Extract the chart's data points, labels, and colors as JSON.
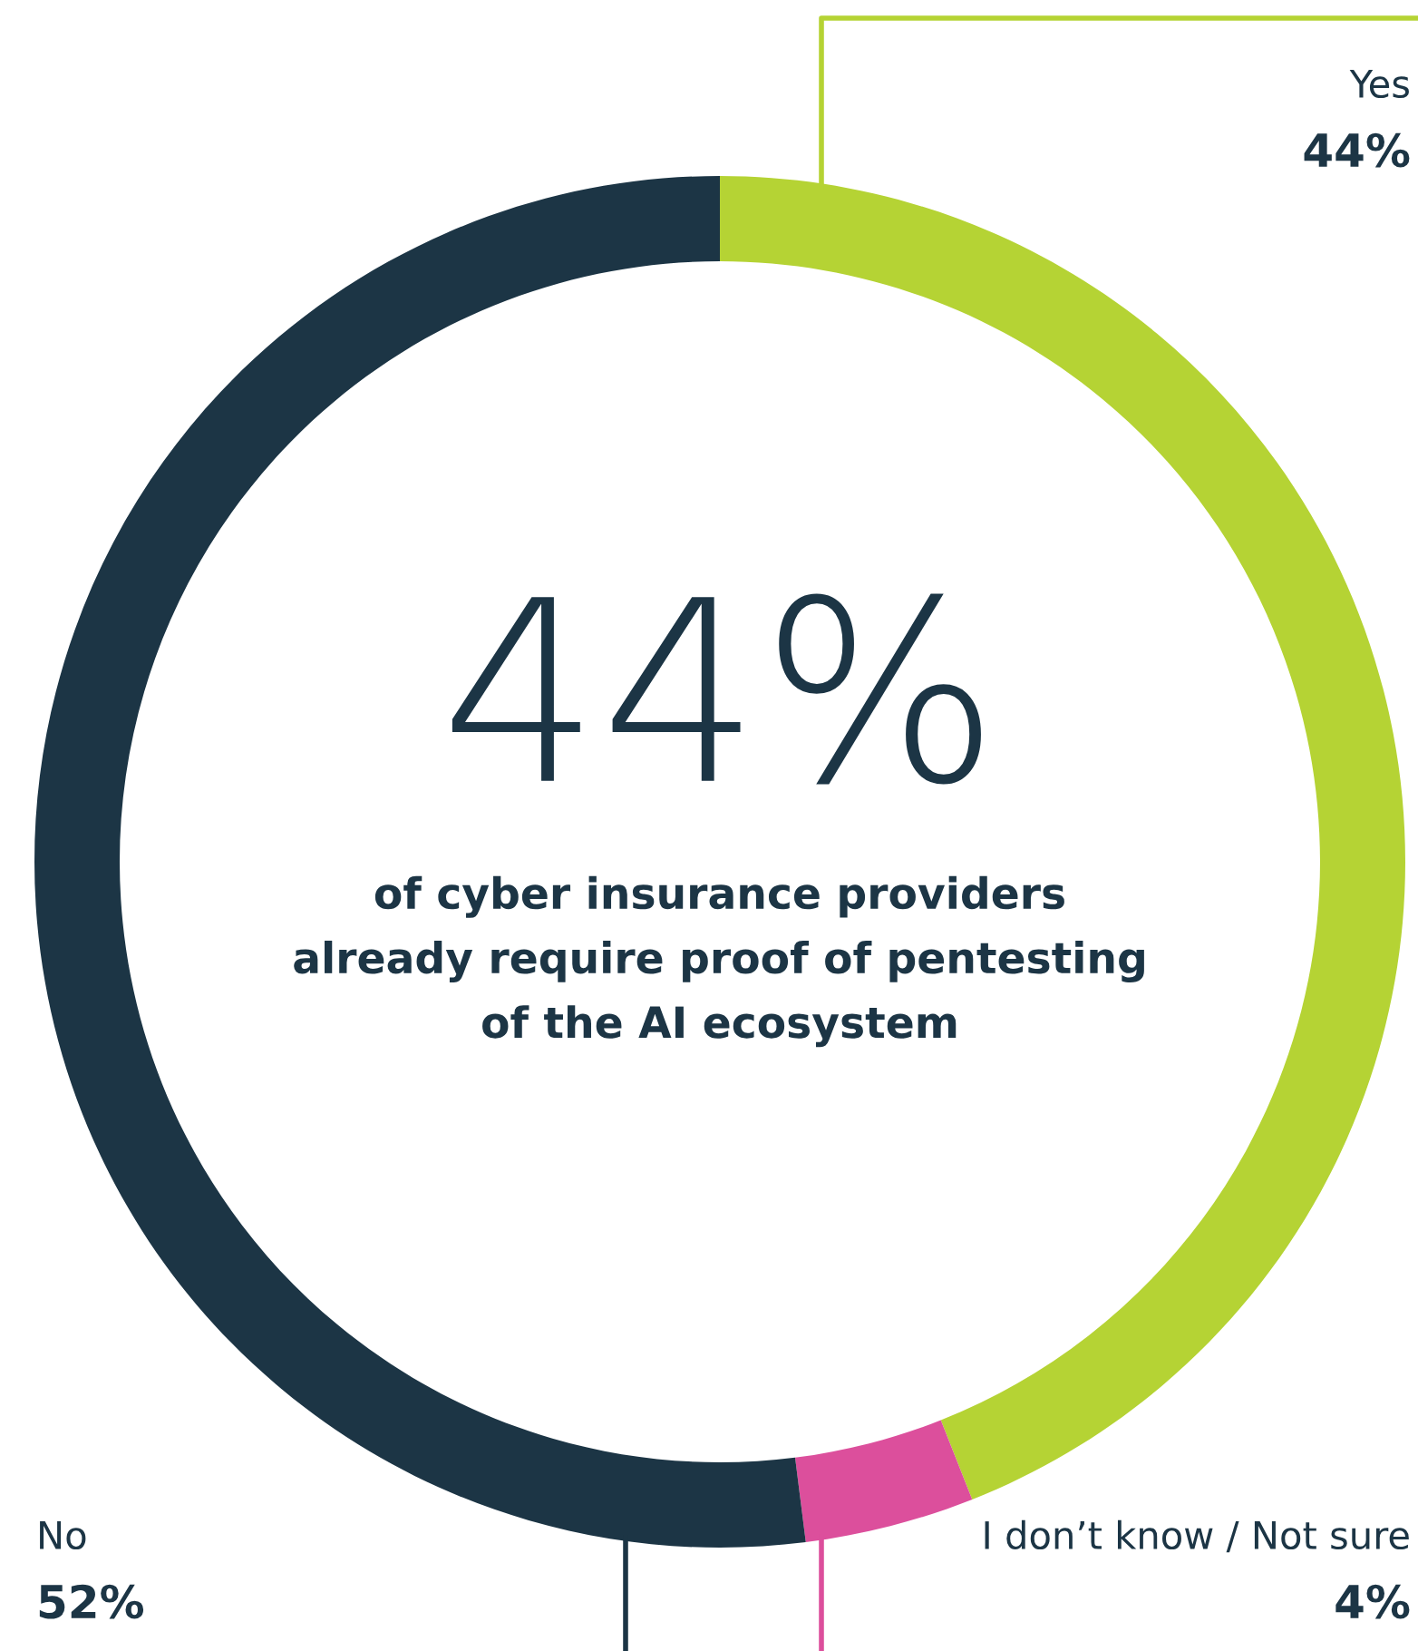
{
  "chart_data": {
    "type": "donut",
    "categories": [
      "Yes",
      "I don’t know / Not sure",
      "No"
    ],
    "values": [
      44,
      4,
      52
    ],
    "value_labels": [
      "44%",
      "4%",
      "52%"
    ],
    "colors": [
      "#b5d334",
      "#dc4f9c",
      "#1c3545"
    ],
    "annotations": [
      "44%",
      "of cyber insurance providers\nalready require proof of pentesting\nof the AI ecosystem"
    ]
  }
}
